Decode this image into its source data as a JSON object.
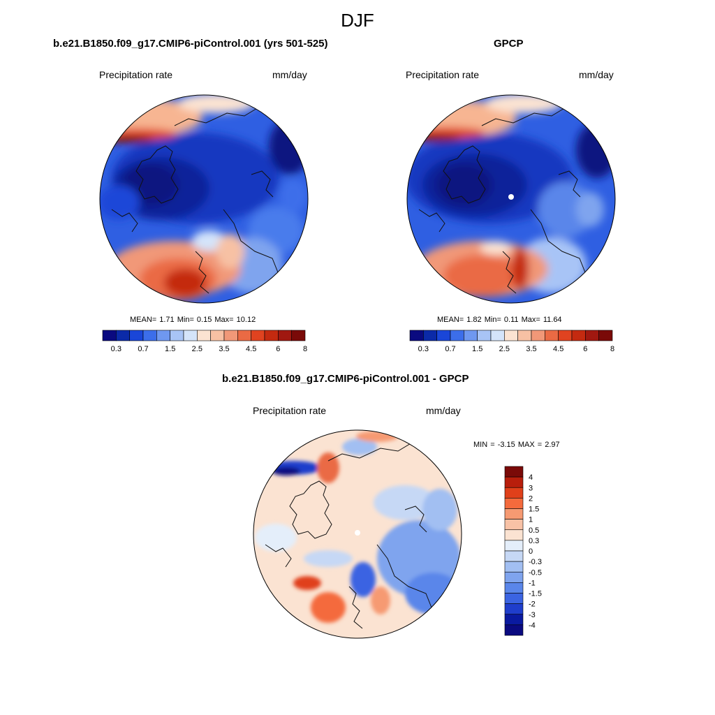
{
  "season": "DJF",
  "panels": [
    {
      "id": "model",
      "title": "b.e21.B1850.f09_g17.CMIP6-piControl.001 (yrs 501-525)",
      "variable": "Precipitation rate",
      "units": "mm/day",
      "stats": "MEAN=   1.71  Min=   0.15  Max=  10.12",
      "colorbar_ticks": [
        "0.3",
        "0.7",
        "1.5",
        "2.5",
        "3.5",
        "4.5",
        "6",
        "8"
      ]
    },
    {
      "id": "obs",
      "title": "GPCP",
      "variable": "Precipitation rate",
      "units": "mm/day",
      "stats": "MEAN=   1.82  Min=   0.11  Max=  11.64",
      "colorbar_ticks": [
        "0.3",
        "0.7",
        "1.5",
        "2.5",
        "3.5",
        "4.5",
        "6",
        "8"
      ]
    },
    {
      "id": "diff",
      "title": "b.e21.B1850.f09_g17.CMIP6-piControl.001 - GPCP",
      "variable": "Precipitation rate",
      "units": "mm/day",
      "stats": "MIN =  -3.15 MAX =   2.97",
      "colorbar_ticks": [
        "4",
        "3",
        "2",
        "1.5",
        "1",
        "0.5",
        "0.3",
        "0",
        "-0.3",
        "-0.5",
        "-1",
        "-1.5",
        "-2",
        "-3",
        "-4"
      ]
    }
  ],
  "colors": {
    "abs_scale": [
      "#0a0a80",
      "#0b2aa8",
      "#1a46d8",
      "#3c6eea",
      "#6f98f0",
      "#a8c4f6",
      "#d4e4fa",
      "#fbe3d2",
      "#f7c1a4",
      "#f19878",
      "#ea6a44",
      "#e04320",
      "#c42a10",
      "#a01810",
      "#7a0a08"
    ],
    "diff_scale": [
      "#7a0a08",
      "#b81e0c",
      "#e0401a",
      "#f46a3c",
      "#f69a72",
      "#f8c2a6",
      "#fbe3d2",
      "#e4eefa",
      "#c6d8f5",
      "#a2bff2",
      "#7fa4ee",
      "#5a86ea",
      "#3b64e2",
      "#1f3ecc",
      "#0a1aa0",
      "#0a0a80"
    ],
    "land_outline": "#111111"
  }
}
